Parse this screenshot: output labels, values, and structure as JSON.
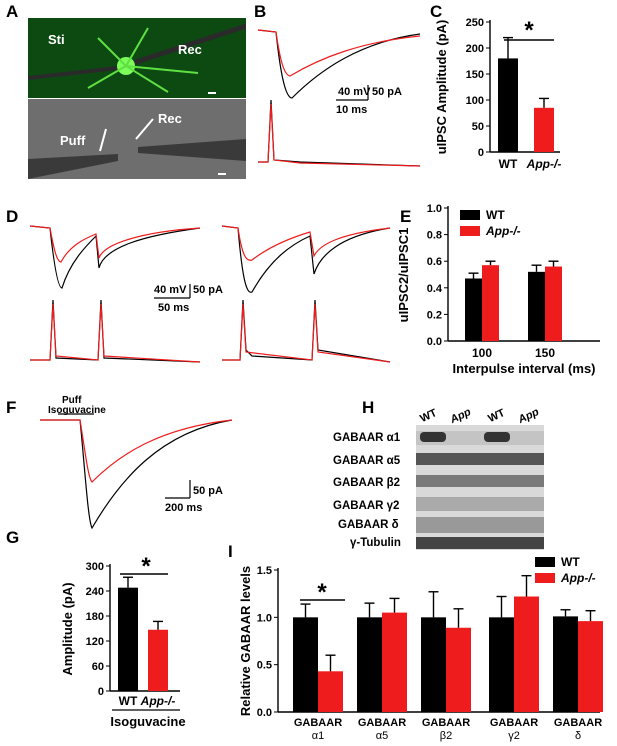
{
  "panels": {
    "A": "A",
    "B": "B",
    "C": "C",
    "D": "D",
    "E": "E",
    "F": "F",
    "G": "G",
    "H": "H",
    "I": "I"
  },
  "panelA": {
    "top_labels": [
      "Sti",
      "Rec"
    ],
    "bottom_labels": [
      "Puff",
      "Rec"
    ]
  },
  "scale_B": {
    "mv": "40 mV",
    "pa": "50 pA",
    "ms": "10 ms"
  },
  "scale_D": {
    "mv": "40 mV",
    "pa": "50 pA",
    "ms": "50 ms"
  },
  "scale_F": {
    "pa": "50 pA",
    "ms": "200 ms"
  },
  "panelF": {
    "puff": "Puff",
    "drug": "Isoguvacine"
  },
  "blot": {
    "columns": [
      "WT",
      "App",
      "WT",
      "App"
    ],
    "rows": [
      "GABAAR α1",
      "GABAAR α5",
      "GABAAR β2",
      "GABAAR γ2",
      "GABAAR δ",
      "γ-Tubulin"
    ]
  },
  "colors": {
    "wt": "#000000",
    "app": "#ee1c1c"
  },
  "chart_data": [
    {
      "panel": "C",
      "type": "bar",
      "categories": [
        "WT",
        "App-/-"
      ],
      "values": [
        180,
        85
      ],
      "errors": [
        40,
        18
      ],
      "ylabel": "uIPSC Amplitude (pA)",
      "ylim": [
        0,
        250
      ],
      "yticks": [
        0,
        50,
        100,
        150,
        200,
        250
      ],
      "significance": "*"
    },
    {
      "panel": "E",
      "type": "bar",
      "categories": [
        "100",
        "150"
      ],
      "series": [
        {
          "name": "WT",
          "values": [
            0.47,
            0.52
          ],
          "errors": [
            0.04,
            0.05
          ]
        },
        {
          "name": "App-/-",
          "values": [
            0.57,
            0.56
          ],
          "errors": [
            0.03,
            0.04
          ]
        }
      ],
      "xlabel": "Interpulse interval (ms)",
      "ylabel": "uIPSC2/uIPSC1",
      "ylim": [
        0,
        1.0
      ],
      "yticks": [
        "0.0",
        "0.2",
        "0.4",
        "0.6",
        "0.8",
        "1.0"
      ],
      "legend": "top-left"
    },
    {
      "panel": "G",
      "type": "bar",
      "categories": [
        "WT",
        "App-/-"
      ],
      "values": [
        248,
        147
      ],
      "errors": [
        25,
        20
      ],
      "ylabel": "Amplitude (pA)",
      "xlabel": "Isoguvacine",
      "ylim": [
        0,
        300
      ],
      "yticks": [
        0,
        60,
        120,
        180,
        240,
        300
      ],
      "significance": "*"
    },
    {
      "panel": "I",
      "type": "bar",
      "categories": [
        "α1",
        "α5",
        "β2",
        "γ2",
        "δ"
      ],
      "category_prefix": "GABAAR",
      "series": [
        {
          "name": "WT",
          "values": [
            1.0,
            1.0,
            1.0,
            1.0,
            1.01
          ],
          "errors": [
            0.14,
            0.15,
            0.27,
            0.22,
            0.07
          ]
        },
        {
          "name": "App-/-",
          "values": [
            0.43,
            1.05,
            0.89,
            1.22,
            0.96
          ],
          "errors": [
            0.17,
            0.15,
            0.2,
            0.22,
            0.11
          ]
        }
      ],
      "ylabel": "Relative GABAAR levels",
      "ylim": [
        0,
        1.5
      ],
      "yticks": [
        "0.0",
        "0.5",
        "1.0",
        "1.5"
      ],
      "significance_on": "α1",
      "legend": "top-right"
    }
  ]
}
